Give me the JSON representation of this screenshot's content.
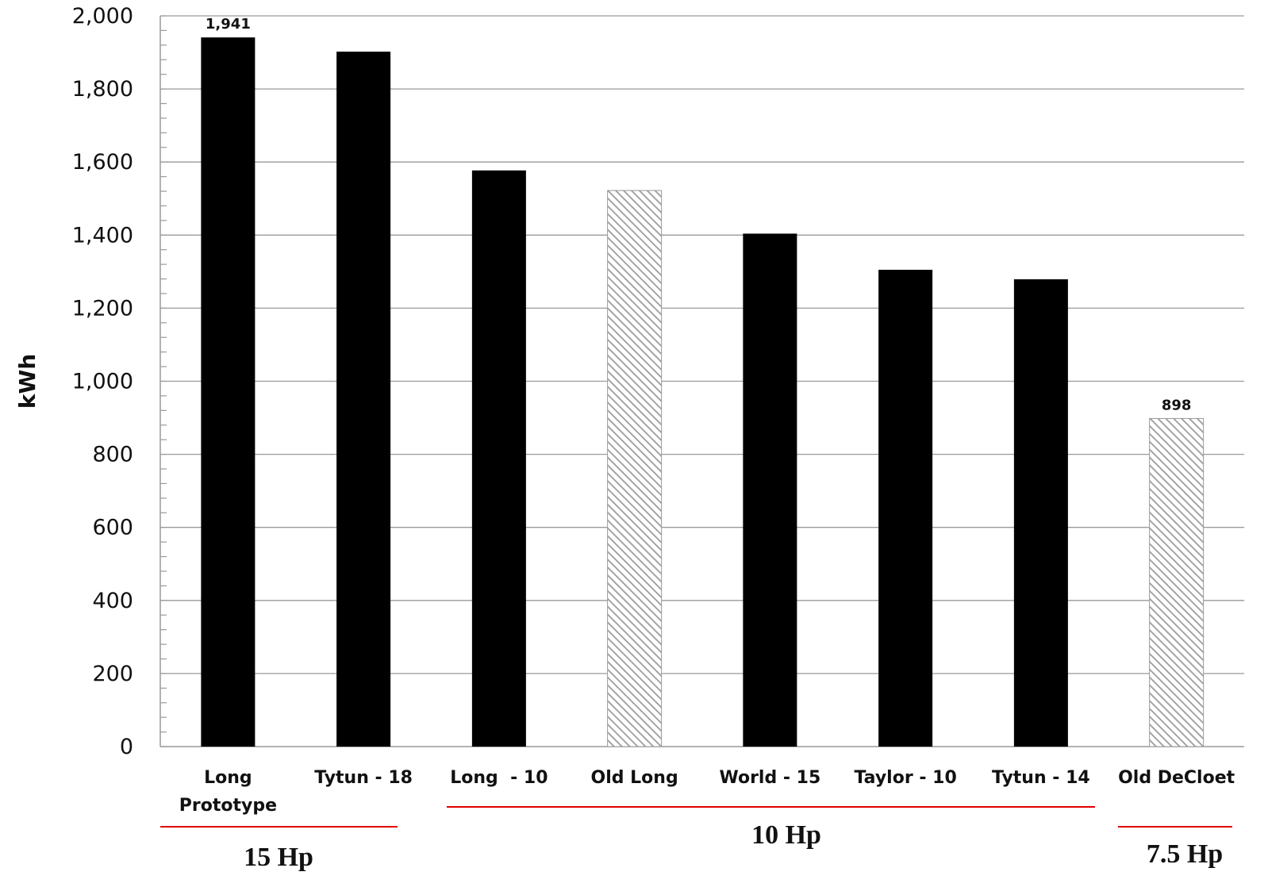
{
  "chart_data": {
    "type": "bar",
    "ylabel": "kWh",
    "ylim": [
      0,
      2000
    ],
    "yticks": [
      0,
      200,
      400,
      600,
      800,
      1000,
      1200,
      1400,
      1600,
      1800,
      2000
    ],
    "ytick_labels": [
      "0",
      "200",
      "400",
      "600",
      "800",
      "1,000",
      "1,200",
      "1,400",
      "1,600",
      "1,800",
      "2,000"
    ],
    "grid": true,
    "categories": [
      [
        "Long",
        "Prototype"
      ],
      [
        "Tytun - 18"
      ],
      [
        "Long  - 10"
      ],
      [
        "Old Long"
      ],
      [
        "World - 15"
      ],
      [
        "Taylor - 10"
      ],
      [
        "Tytun - 14"
      ],
      [
        "Old DeCloet"
      ]
    ],
    "values": [
      1941,
      1902,
      1577,
      1522,
      1404,
      1305,
      1279,
      898
    ],
    "bar_styles": [
      "solid",
      "solid",
      "solid",
      "hatched",
      "solid",
      "solid",
      "solid",
      "hatched"
    ],
    "data_labels": [
      {
        "index": 0,
        "text": "1,941"
      },
      {
        "index": 7,
        "text": "898"
      }
    ],
    "groups": [
      {
        "label": "15 Hp",
        "from": 0,
        "to": 1
      },
      {
        "label": "10 Hp",
        "from": 2,
        "to": 6
      },
      {
        "label": "7.5 Hp",
        "from": 7,
        "to": 7
      }
    ],
    "colors": {
      "solid": "#000000",
      "hatch_line": "#9a9a9a",
      "hatch_bg": "#ffffff",
      "grid": "#9a9a9a",
      "group_underline": "#e00000"
    }
  }
}
